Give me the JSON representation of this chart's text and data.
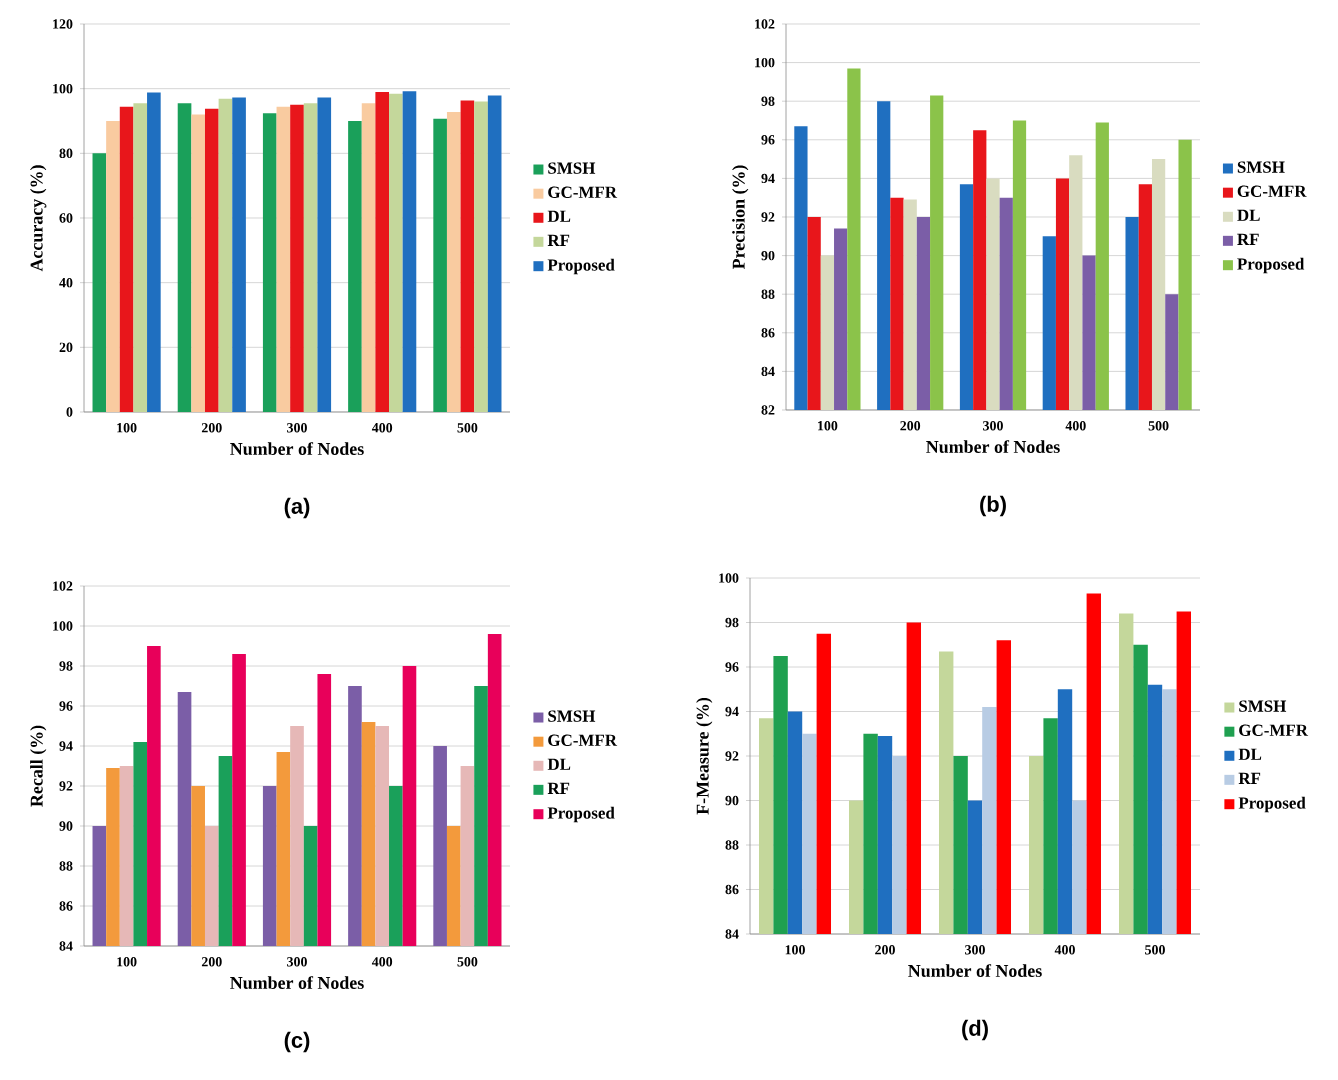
{
  "chart_data": [
    {
      "type": "bar",
      "xlabel": "Number of Nodes",
      "ylabel": "Accuracy (%)",
      "categories": [
        "100",
        "200",
        "300",
        "400",
        "500"
      ],
      "ylim": [
        0,
        120
      ],
      "yticks": [
        0,
        20,
        40,
        60,
        80,
        100,
        120
      ],
      "grid": "y",
      "legend": "right",
      "annotations": [
        "(a)"
      ],
      "series": [
        {
          "name": "SMSH",
          "color": "#1aa05a",
          "values": [
            80,
            95.5,
            92.4,
            90,
            90.7
          ]
        },
        {
          "name": "GC-MFR",
          "color": "#f9cba0",
          "values": [
            90,
            92,
            94.4,
            95.5,
            92.8
          ]
        },
        {
          "name": "DL",
          "color": "#e8161b",
          "values": [
            94.4,
            93.8,
            95,
            99,
            96.3
          ]
        },
        {
          "name": "RF",
          "color": "#c4d79b",
          "values": [
            95.5,
            96.9,
            95.5,
            98.4,
            96
          ]
        },
        {
          "name": "Proposed",
          "color": "#1f6fc0",
          "values": [
            98.8,
            97.3,
            97.3,
            99.2,
            97.9
          ]
        }
      ]
    },
    {
      "type": "bar",
      "xlabel": "Number of Nodes",
      "ylabel": "Precision (%)",
      "categories": [
        "100",
        "200",
        "300",
        "400",
        "500"
      ],
      "ylim": [
        82,
        102
      ],
      "yticks": [
        82,
        84,
        86,
        88,
        90,
        92,
        94,
        96,
        98,
        100,
        102
      ],
      "grid": "y",
      "legend": "right",
      "annotations": [
        "(b)"
      ],
      "series": [
        {
          "name": "SMSH",
          "color": "#1f6fc0",
          "values": [
            96.7,
            98,
            93.7,
            91,
            92
          ]
        },
        {
          "name": "GC-MFR",
          "color": "#e8161b",
          "values": [
            92,
            93,
            96.5,
            94,
            93.7
          ]
        },
        {
          "name": "DL",
          "color": "#d9dcc0",
          "values": [
            90,
            92.9,
            94,
            95.2,
            95
          ]
        },
        {
          "name": "RF",
          "color": "#7b5ea7",
          "values": [
            91.4,
            92,
            93,
            90,
            88
          ]
        },
        {
          "name": "Proposed",
          "color": "#8bc34a",
          "values": [
            99.7,
            98.3,
            97,
            96.9,
            96
          ]
        }
      ]
    },
    {
      "type": "bar",
      "xlabel": "Number of Nodes",
      "ylabel": "Recall (%)",
      "categories": [
        "100",
        "200",
        "300",
        "400",
        "500"
      ],
      "ylim": [
        84,
        102
      ],
      "yticks": [
        84,
        86,
        88,
        90,
        92,
        94,
        96,
        98,
        100,
        102
      ],
      "grid": "y",
      "legend": "right",
      "annotations": [
        "(c)"
      ],
      "series": [
        {
          "name": "SMSH",
          "color": "#7b5ea7",
          "values": [
            90,
            96.7,
            92,
            97,
            94
          ]
        },
        {
          "name": "GC-MFR",
          "color": "#f39a3c",
          "values": [
            92.9,
            92,
            93.7,
            95.2,
            90
          ]
        },
        {
          "name": "DL",
          "color": "#e6b8b7",
          "values": [
            93,
            90,
            95,
            95,
            93
          ]
        },
        {
          "name": "RF",
          "color": "#1aa05a",
          "values": [
            94.2,
            93.5,
            90,
            92,
            97
          ]
        },
        {
          "name": "Proposed",
          "color": "#e8005a",
          "values": [
            99,
            98.6,
            97.6,
            98,
            99.6
          ]
        }
      ]
    },
    {
      "type": "bar",
      "xlabel": "Number of Nodes",
      "ylabel": "F-Measure (%)",
      "categories": [
        "100",
        "200",
        "300",
        "400",
        "500"
      ],
      "ylim": [
        84,
        100
      ],
      "yticks": [
        84,
        86,
        88,
        90,
        92,
        94,
        96,
        98,
        100
      ],
      "grid": "y",
      "legend": "right",
      "annotations": [
        "(d)"
      ],
      "series": [
        {
          "name": "SMSH",
          "color": "#c4d79b",
          "values": [
            93.7,
            90,
            96.7,
            92,
            98.4
          ]
        },
        {
          "name": "GC-MFR",
          "color": "#1fa050",
          "values": [
            96.5,
            93,
            92,
            93.7,
            97
          ]
        },
        {
          "name": "DL",
          "color": "#1f6fc0",
          "values": [
            94,
            92.9,
            90,
            95,
            95.2
          ]
        },
        {
          "name": "RF",
          "color": "#b8cce4",
          "values": [
            93,
            92,
            94.2,
            90,
            95
          ]
        },
        {
          "name": "Proposed",
          "color": "#ff0000",
          "values": [
            97.5,
            98,
            97.2,
            99.3,
            98.5
          ]
        }
      ]
    }
  ]
}
